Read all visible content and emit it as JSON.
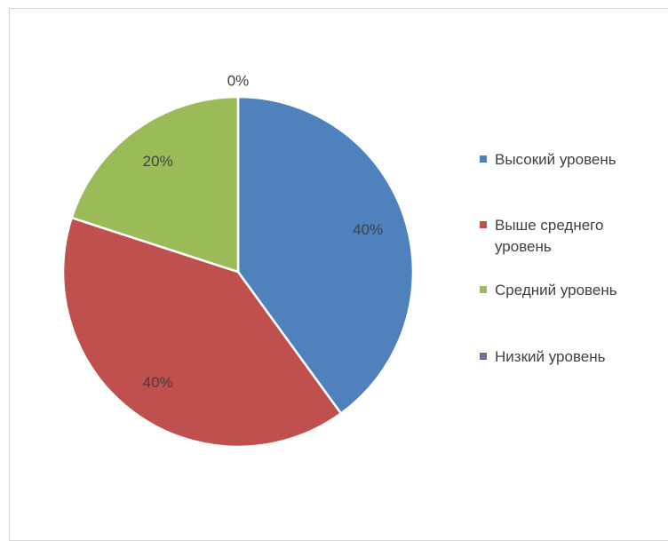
{
  "chart_data": {
    "type": "pie",
    "title": "",
    "slices": [
      {
        "label": "Высокий уровень",
        "value": 40,
        "data_label": "40%",
        "color": "#4f81bd"
      },
      {
        "label": "Выше среднего уровень",
        "value": 40,
        "data_label": "40%",
        "color": "#c0504d"
      },
      {
        "label": "Средний уровень",
        "value": 20,
        "data_label": "20%",
        "color": "#9bbb59"
      },
      {
        "label": "Низкий уровень",
        "value": 0,
        "data_label": "0%",
        "color": "#8064a2"
      }
    ],
    "legend_position": "right",
    "start_angle_deg": 0,
    "direction": "clockwise"
  },
  "legend": {
    "items": [
      {
        "label": "Высокий уровень",
        "color": "#4f81bd"
      },
      {
        "label": "Выше среднего уровень",
        "color": "#c0504d"
      },
      {
        "label": "Средний уровень",
        "color": "#9bbb59"
      },
      {
        "label": "Низкий уровень",
        "color": "#8064a2"
      }
    ]
  }
}
